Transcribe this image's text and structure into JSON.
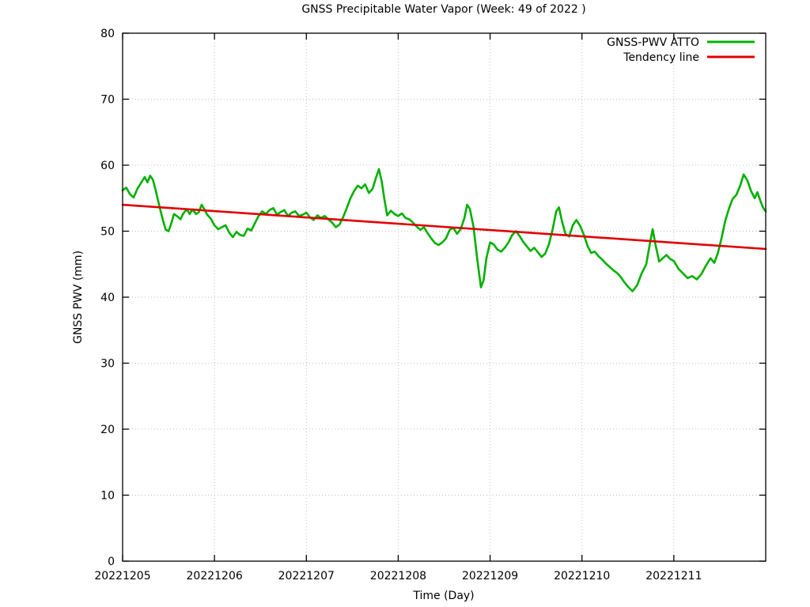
{
  "page": {
    "background": "#ffffff"
  },
  "chart_data": {
    "type": "line",
    "title": "GNSS Precipitable Water Vapor (Week: 49 of 2022 )",
    "xlabel": "Time (Day)",
    "ylabel": "GNSS PWV (mm)",
    "xlim": [
      5,
      12
    ],
    "ylim": [
      0,
      80
    ],
    "grid": "dotted",
    "legend_position": "top-right",
    "colors": {
      "series": "#00b000",
      "tendency": "#e00000",
      "grid": "#bdbdbd",
      "axis": "#000000",
      "background": "#ffffff"
    },
    "x_ticks": [
      {
        "value": 5,
        "label": "20221205"
      },
      {
        "value": 6,
        "label": "20221206"
      },
      {
        "value": 7,
        "label": "20221207"
      },
      {
        "value": 8,
        "label": "20221208"
      },
      {
        "value": 9,
        "label": "20221209"
      },
      {
        "value": 10,
        "label": "20221210"
      },
      {
        "value": 11,
        "label": "20221211"
      }
    ],
    "y_ticks": [
      0,
      10,
      20,
      30,
      40,
      50,
      60,
      70,
      80
    ],
    "series": [
      {
        "name": "GNSS-PWV ATTO",
        "color_key": "series",
        "points": [
          [
            5.0,
            56.2
          ],
          [
            5.04,
            56.6
          ],
          [
            5.08,
            55.6
          ],
          [
            5.12,
            55.1
          ],
          [
            5.16,
            56.4
          ],
          [
            5.2,
            57.3
          ],
          [
            5.24,
            58.2
          ],
          [
            5.27,
            57.4
          ],
          [
            5.3,
            58.4
          ],
          [
            5.33,
            57.8
          ],
          [
            5.36,
            56.2
          ],
          [
            5.4,
            53.8
          ],
          [
            5.44,
            51.6
          ],
          [
            5.47,
            50.2
          ],
          [
            5.5,
            50.0
          ],
          [
            5.53,
            51.2
          ],
          [
            5.56,
            52.6
          ],
          [
            5.6,
            52.2
          ],
          [
            5.63,
            51.8
          ],
          [
            5.66,
            52.7
          ],
          [
            5.7,
            53.3
          ],
          [
            5.73,
            52.6
          ],
          [
            5.76,
            53.3
          ],
          [
            5.8,
            52.6
          ],
          [
            5.83,
            52.9
          ],
          [
            5.86,
            54.0
          ],
          [
            5.89,
            53.3
          ],
          [
            5.92,
            52.5
          ],
          [
            5.96,
            51.9
          ],
          [
            6.0,
            50.9
          ],
          [
            6.04,
            50.3
          ],
          [
            6.08,
            50.6
          ],
          [
            6.12,
            50.9
          ],
          [
            6.16,
            49.8
          ],
          [
            6.2,
            49.1
          ],
          [
            6.24,
            49.9
          ],
          [
            6.28,
            49.4
          ],
          [
            6.32,
            49.3
          ],
          [
            6.36,
            50.4
          ],
          [
            6.4,
            50.1
          ],
          [
            6.44,
            51.2
          ],
          [
            6.48,
            52.3
          ],
          [
            6.52,
            53.0
          ],
          [
            6.56,
            52.6
          ],
          [
            6.6,
            53.2
          ],
          [
            6.64,
            53.5
          ],
          [
            6.68,
            52.5
          ],
          [
            6.72,
            52.9
          ],
          [
            6.76,
            53.2
          ],
          [
            6.8,
            52.3
          ],
          [
            6.84,
            52.8
          ],
          [
            6.88,
            53.0
          ],
          [
            6.92,
            52.3
          ],
          [
            6.96,
            52.5
          ],
          [
            7.0,
            52.8
          ],
          [
            7.04,
            52.1
          ],
          [
            7.08,
            51.7
          ],
          [
            7.12,
            52.4
          ],
          [
            7.16,
            52.0
          ],
          [
            7.2,
            52.3
          ],
          [
            7.24,
            51.8
          ],
          [
            7.28,
            51.3
          ],
          [
            7.32,
            50.6
          ],
          [
            7.36,
            51.0
          ],
          [
            7.4,
            52.1
          ],
          [
            7.44,
            53.5
          ],
          [
            7.48,
            55.0
          ],
          [
            7.52,
            56.1
          ],
          [
            7.56,
            56.9
          ],
          [
            7.6,
            56.5
          ],
          [
            7.64,
            57.1
          ],
          [
            7.68,
            55.8
          ],
          [
            7.72,
            56.4
          ],
          [
            7.76,
            58.2
          ],
          [
            7.79,
            59.4
          ],
          [
            7.82,
            57.6
          ],
          [
            7.85,
            54.8
          ],
          [
            7.88,
            52.4
          ],
          [
            7.92,
            53.1
          ],
          [
            7.96,
            52.6
          ],
          [
            8.0,
            52.3
          ],
          [
            8.04,
            52.7
          ],
          [
            8.08,
            52.0
          ],
          [
            8.12,
            51.8
          ],
          [
            8.16,
            51.3
          ],
          [
            8.2,
            50.7
          ],
          [
            8.24,
            50.2
          ],
          [
            8.28,
            50.6
          ],
          [
            8.32,
            49.7
          ],
          [
            8.36,
            48.9
          ],
          [
            8.4,
            48.2
          ],
          [
            8.44,
            47.9
          ],
          [
            8.48,
            48.3
          ],
          [
            8.52,
            48.9
          ],
          [
            8.56,
            50.2
          ],
          [
            8.6,
            50.5
          ],
          [
            8.64,
            49.6
          ],
          [
            8.68,
            50.3
          ],
          [
            8.72,
            52.0
          ],
          [
            8.75,
            54.0
          ],
          [
            8.78,
            53.4
          ],
          [
            8.82,
            50.6
          ],
          [
            8.86,
            45.8
          ],
          [
            8.9,
            41.5
          ],
          [
            8.93,
            42.6
          ],
          [
            8.96,
            45.9
          ],
          [
            9.0,
            48.3
          ],
          [
            9.04,
            48.0
          ],
          [
            9.08,
            47.2
          ],
          [
            9.12,
            46.9
          ],
          [
            9.16,
            47.5
          ],
          [
            9.2,
            48.3
          ],
          [
            9.24,
            49.4
          ],
          [
            9.28,
            50.0
          ],
          [
            9.32,
            49.3
          ],
          [
            9.36,
            48.4
          ],
          [
            9.4,
            47.7
          ],
          [
            9.44,
            47.0
          ],
          [
            9.48,
            47.5
          ],
          [
            9.52,
            46.8
          ],
          [
            9.56,
            46.1
          ],
          [
            9.6,
            46.6
          ],
          [
            9.64,
            48.0
          ],
          [
            9.68,
            50.2
          ],
          [
            9.72,
            53.0
          ],
          [
            9.75,
            53.6
          ],
          [
            9.78,
            51.6
          ],
          [
            9.82,
            49.6
          ],
          [
            9.86,
            49.2
          ],
          [
            9.9,
            50.9
          ],
          [
            9.94,
            51.7
          ],
          [
            9.98,
            50.8
          ],
          [
            10.02,
            49.5
          ],
          [
            10.06,
            47.8
          ],
          [
            10.1,
            46.7
          ],
          [
            10.14,
            46.9
          ],
          [
            10.18,
            46.2
          ],
          [
            10.22,
            45.7
          ],
          [
            10.26,
            45.1
          ],
          [
            10.3,
            44.6
          ],
          [
            10.34,
            44.1
          ],
          [
            10.38,
            43.7
          ],
          [
            10.42,
            43.1
          ],
          [
            10.46,
            42.3
          ],
          [
            10.5,
            41.6
          ],
          [
            10.55,
            40.9
          ],
          [
            10.6,
            41.8
          ],
          [
            10.65,
            43.6
          ],
          [
            10.7,
            45.0
          ],
          [
            10.74,
            48.2
          ],
          [
            10.77,
            50.3
          ],
          [
            10.8,
            48.0
          ],
          [
            10.84,
            45.4
          ],
          [
            10.88,
            45.9
          ],
          [
            10.92,
            46.4
          ],
          [
            10.96,
            45.8
          ],
          [
            11.0,
            45.5
          ],
          [
            11.05,
            44.3
          ],
          [
            11.1,
            43.6
          ],
          [
            11.15,
            42.9
          ],
          [
            11.2,
            43.2
          ],
          [
            11.25,
            42.7
          ],
          [
            11.3,
            43.5
          ],
          [
            11.35,
            44.8
          ],
          [
            11.4,
            45.9
          ],
          [
            11.44,
            45.2
          ],
          [
            11.48,
            46.7
          ],
          [
            11.52,
            49.0
          ],
          [
            11.56,
            51.6
          ],
          [
            11.6,
            53.4
          ],
          [
            11.64,
            54.9
          ],
          [
            11.68,
            55.5
          ],
          [
            11.72,
            56.8
          ],
          [
            11.76,
            58.6
          ],
          [
            11.8,
            57.7
          ],
          [
            11.84,
            56.1
          ],
          [
            11.88,
            55.0
          ],
          [
            11.91,
            55.9
          ],
          [
            11.94,
            54.7
          ],
          [
            11.97,
            53.6
          ],
          [
            12.0,
            53.0
          ]
        ]
      },
      {
        "name": "Tendency line",
        "color_key": "tendency",
        "points": [
          [
            5.0,
            54.0
          ],
          [
            12.0,
            47.3
          ]
        ]
      }
    ]
  }
}
